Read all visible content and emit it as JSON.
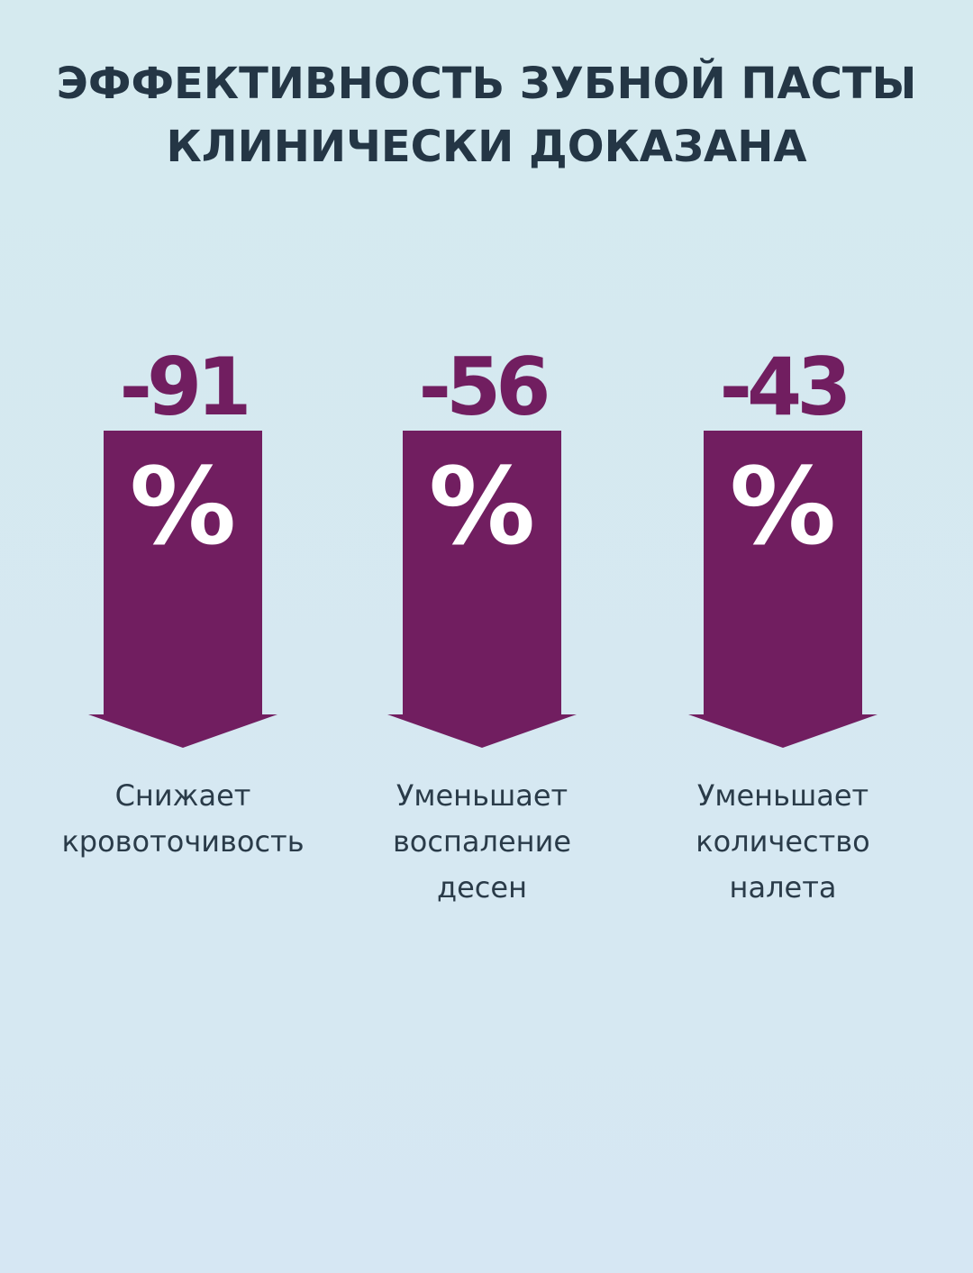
{
  "title": {
    "line1": "ЭФФЕКТИВНОСТЬ ЗУБНОЙ ПАСТЫ",
    "line2": "КЛИНИЧЕСКИ ДОКАЗАНА"
  },
  "stats": [
    {
      "value": "-91",
      "unit": "%",
      "caption": [
        "Снижает",
        "кровоточивость"
      ]
    },
    {
      "value": "-56",
      "unit": "%",
      "caption": [
        "Уменьшает",
        "воспаление",
        "десен"
      ]
    },
    {
      "value": "-43",
      "unit": "%",
      "caption": [
        "Уменьшает",
        "количество",
        "налета"
      ]
    }
  ],
  "colors": {
    "accent": "#711e60",
    "title": "#243645",
    "text": "#2a3b49",
    "background": "#d5eaef"
  },
  "icons": {
    "arrow": "down-arrow-icon"
  }
}
